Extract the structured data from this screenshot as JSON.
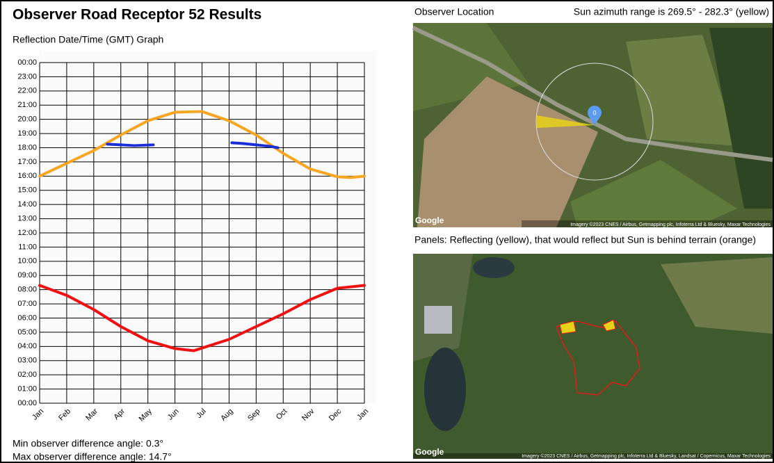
{
  "header": {
    "title": "Observer Road Receptor 52 Results"
  },
  "chart_data": {
    "type": "line",
    "title": "Reflection Date/Time (GMT) Graph",
    "xlim": [
      0,
      12
    ],
    "xticks": [
      {
        "value": 0,
        "label": "Jan"
      },
      {
        "value": 1,
        "label": "Feb"
      },
      {
        "value": 2,
        "label": "Mar"
      },
      {
        "value": 3,
        "label": "Apr"
      },
      {
        "value": 4,
        "label": "May"
      },
      {
        "value": 5,
        "label": "Jun"
      },
      {
        "value": 6,
        "label": "Jul"
      },
      {
        "value": 7,
        "label": "Aug"
      },
      {
        "value": 8,
        "label": "Sep"
      },
      {
        "value": 9,
        "label": "Oct"
      },
      {
        "value": 10,
        "label": "Nov"
      },
      {
        "value": 11,
        "label": "Dec"
      },
      {
        "value": 12,
        "label": "Jan"
      }
    ],
    "ylim": [
      0,
      24
    ],
    "yticks": [
      {
        "value": 0,
        "label": "00:00"
      },
      {
        "value": 1,
        "label": "01:00"
      },
      {
        "value": 2,
        "label": "02:00"
      },
      {
        "value": 3,
        "label": "03:00"
      },
      {
        "value": 4,
        "label": "04:00"
      },
      {
        "value": 5,
        "label": "05:00"
      },
      {
        "value": 6,
        "label": "06:00"
      },
      {
        "value": 7,
        "label": "07:00"
      },
      {
        "value": 8,
        "label": "08:00"
      },
      {
        "value": 9,
        "label": "09:00"
      },
      {
        "value": 10,
        "label": "10:00"
      },
      {
        "value": 11,
        "label": "11:00"
      },
      {
        "value": 12,
        "label": "12:00"
      },
      {
        "value": 13,
        "label": "13:00"
      },
      {
        "value": 14,
        "label": "14:00"
      },
      {
        "value": 15,
        "label": "15:00"
      },
      {
        "value": 16,
        "label": "16:00"
      },
      {
        "value": 17,
        "label": "17:00"
      },
      {
        "value": 18,
        "label": "18:00"
      },
      {
        "value": 19,
        "label": "19:00"
      },
      {
        "value": 20,
        "label": "20:00"
      },
      {
        "value": 21,
        "label": "21:00"
      },
      {
        "value": 22,
        "label": "22:00"
      },
      {
        "value": 23,
        "label": "23:00"
      },
      {
        "value": 24,
        "label": "00:00"
      }
    ],
    "grid": true,
    "series": [
      {
        "color": "#f5a623",
        "x": [
          0,
          1,
          2,
          3,
          4,
          5,
          6,
          7,
          8,
          9,
          10,
          11,
          11.5,
          12
        ],
        "values": [
          16.0,
          16.9,
          17.8,
          18.9,
          19.9,
          20.5,
          20.55,
          19.9,
          18.9,
          17.6,
          16.5,
          15.95,
          15.9,
          16.0
        ]
      },
      {
        "color": "#ee1111",
        "x": [
          0,
          1,
          2,
          3,
          4,
          5,
          5.7,
          7,
          8,
          9,
          10,
          11,
          12
        ],
        "values": [
          8.3,
          7.6,
          6.6,
          5.4,
          4.4,
          3.85,
          3.7,
          4.5,
          5.4,
          6.3,
          7.3,
          8.1,
          8.3
        ]
      },
      {
        "color": "#1a2fd6",
        "x": [
          2.5,
          3,
          3.5,
          4.2
        ],
        "values": [
          18.25,
          18.2,
          18.15,
          18.2
        ]
      },
      {
        "color": "#1a2fd6",
        "x": [
          7.1,
          7.5,
          8,
          8.5,
          8.8
        ],
        "values": [
          18.35,
          18.3,
          18.2,
          18.1,
          18.0
        ]
      }
    ]
  },
  "stats": {
    "min": "Min observer difference angle: 0.3°",
    "max": "Max observer difference angle: 14.7°"
  },
  "map1": {
    "label": "Observer Location",
    "azimuth": "Sun azimuth range is 269.5° - 282.3° (yellow)",
    "marker": "0",
    "logo": "Google",
    "credit": "Imagery ©2023 CNES / Airbus, Getmapping plc, Infoterra Ltd & Bluesky, Maxar Technologies"
  },
  "map2": {
    "label": "Panels: Reflecting (yellow), that would reflect but Sun is behind terrain (orange)",
    "logo": "Google",
    "credit": "Imagery ©2023 CNES / Airbus, Getmapping plc, Infoterra Ltd & Bluesky, Landsat / Copernicus, Maxar Technologies"
  }
}
